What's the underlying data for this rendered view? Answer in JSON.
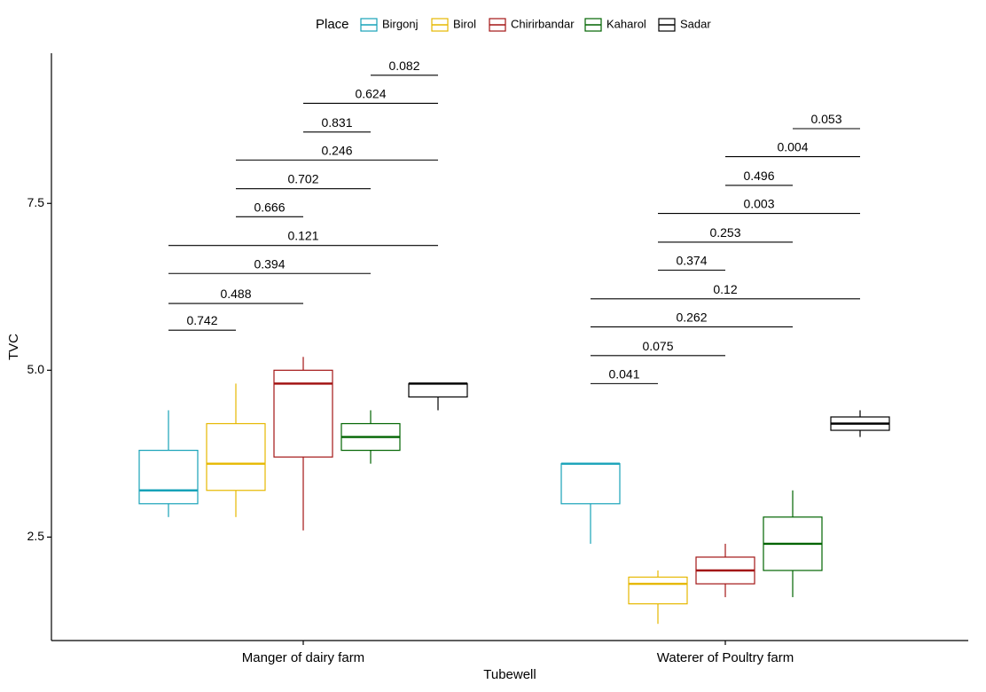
{
  "chart_data": {
    "type": "boxplot",
    "xlabel": "Tubewell",
    "ylabel": "TVC",
    "ylim": [
      0.95,
      9.75
    ],
    "yticks": [
      2.5,
      5.0,
      7.5
    ],
    "ytick_labels": [
      "2.5",
      "5.0",
      "7.5"
    ],
    "grid": false,
    "legend": {
      "title": "Place",
      "position": "top",
      "entries": [
        {
          "name": "Birgonj",
          "color": "#17a2b8"
        },
        {
          "name": "Birol",
          "color": "#e6b800"
        },
        {
          "name": "Chirirbandar",
          "color": "#a31515"
        },
        {
          "name": "Kaharol",
          "color": "#006400"
        },
        {
          "name": "Sadar",
          "color": "#000000"
        }
      ]
    },
    "categories": [
      "Manger of dairy farm",
      "Waterer of Poultry farm"
    ],
    "groups": [
      {
        "category": "Manger of dairy farm",
        "boxes": [
          {
            "series": "Birgonj",
            "min": 2.8,
            "q1": 3.0,
            "median": 3.2,
            "q3": 3.8,
            "max": 4.4
          },
          {
            "series": "Birol",
            "min": 2.8,
            "q1": 3.2,
            "median": 3.6,
            "q3": 4.2,
            "max": 4.8
          },
          {
            "series": "Chirirbandar",
            "min": 2.6,
            "q1": 3.7,
            "median": 4.8,
            "q3": 5.0,
            "max": 5.2
          },
          {
            "series": "Kaharol",
            "min": 3.6,
            "q1": 3.8,
            "median": 4.0,
            "q3": 4.2,
            "max": 4.4
          },
          {
            "series": "Sadar",
            "min": 4.4,
            "q1": 4.6,
            "median": 4.8,
            "q3": 4.8,
            "max": 4.8
          }
        ],
        "comparisons": [
          {
            "from": "Birgonj",
            "to": "Birol",
            "y": 5.6,
            "label": "0.742"
          },
          {
            "from": "Birgonj",
            "to": "Chirirbandar",
            "y": 6.0,
            "label": "0.488"
          },
          {
            "from": "Birgonj",
            "to": "Kaharol",
            "y": 6.45,
            "label": "0.394"
          },
          {
            "from": "Birgonj",
            "to": "Sadar",
            "y": 6.87,
            "label": "0.121"
          },
          {
            "from": "Birol",
            "to": "Chirirbandar",
            "y": 7.3,
            "label": "0.666"
          },
          {
            "from": "Birol",
            "to": "Kaharol",
            "y": 7.72,
            "label": "0.702"
          },
          {
            "from": "Birol",
            "to": "Sadar",
            "y": 8.15,
            "label": "0.246"
          },
          {
            "from": "Chirirbandar",
            "to": "Kaharol",
            "y": 8.57,
            "label": "0.831"
          },
          {
            "from": "Chirirbandar",
            "to": "Sadar",
            "y": 9.0,
            "label": "0.624"
          },
          {
            "from": "Kaharol",
            "to": "Sadar",
            "y": 9.42,
            "label": "0.082"
          }
        ]
      },
      {
        "category": "Waterer of Poultry farm",
        "boxes": [
          {
            "series": "Birgonj",
            "min": 2.4,
            "q1": 3.0,
            "median": 3.6,
            "q3": 3.6,
            "max": 3.6
          },
          {
            "series": "Birol",
            "min": 1.2,
            "q1": 1.5,
            "median": 1.8,
            "q3": 1.9,
            "max": 2.0
          },
          {
            "series": "Chirirbandar",
            "min": 1.6,
            "q1": 1.8,
            "median": 2.0,
            "q3": 2.2,
            "max": 2.4
          },
          {
            "series": "Kaharol",
            "min": 1.6,
            "q1": 2.0,
            "median": 2.4,
            "q3": 2.8,
            "max": 3.2
          },
          {
            "series": "Sadar",
            "min": 4.0,
            "q1": 4.1,
            "median": 4.2,
            "q3": 4.3,
            "max": 4.4
          }
        ],
        "comparisons": [
          {
            "from": "Birgonj",
            "to": "Birol",
            "y": 4.8,
            "label": "0.041"
          },
          {
            "from": "Birgonj",
            "to": "Chirirbandar",
            "y": 5.22,
            "label": "0.075"
          },
          {
            "from": "Birgonj",
            "to": "Kaharol",
            "y": 5.65,
            "label": "0.262"
          },
          {
            "from": "Birgonj",
            "to": "Sadar",
            "y": 6.07,
            "label": "0.12"
          },
          {
            "from": "Birol",
            "to": "Chirirbandar",
            "y": 6.5,
            "label": "0.374"
          },
          {
            "from": "Birol",
            "to": "Kaharol",
            "y": 6.92,
            "label": "0.253"
          },
          {
            "from": "Birol",
            "to": "Sadar",
            "y": 7.35,
            "label": "0.003"
          },
          {
            "from": "Chirirbandar",
            "to": "Kaharol",
            "y": 7.77,
            "label": "0.496"
          },
          {
            "from": "Chirirbandar",
            "to": "Sadar",
            "y": 8.2,
            "label": "0.004"
          },
          {
            "from": "Kaharol",
            "to": "Sadar",
            "y": 8.62,
            "label": "0.053"
          }
        ]
      }
    ]
  }
}
